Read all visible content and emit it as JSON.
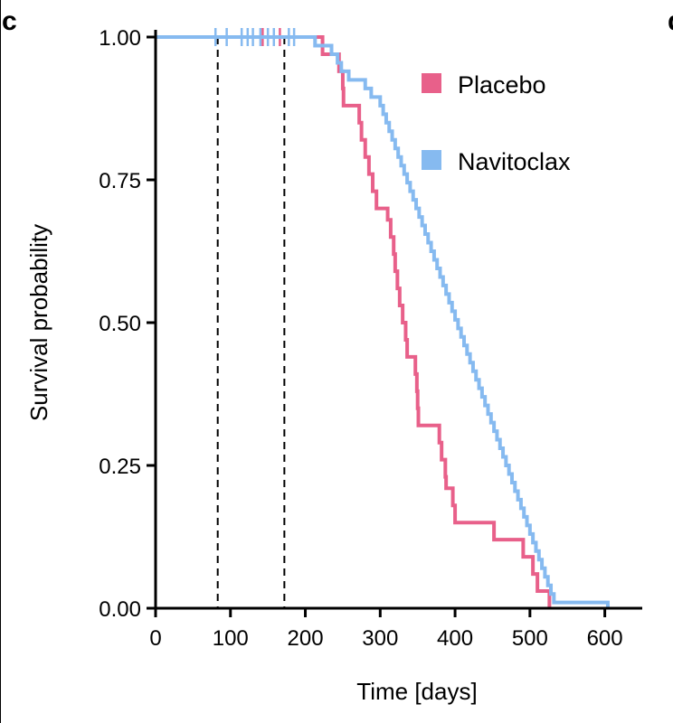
{
  "panel_letters": {
    "left": "c",
    "right": "d"
  },
  "chart_data": {
    "type": "line",
    "subtype": "kaplan-meier step",
    "xlabel": "Time [days]",
    "ylabel": "Survival probability",
    "xlim": [
      0,
      650
    ],
    "ylim": [
      0,
      1
    ],
    "x_ticks": [
      0,
      100,
      200,
      300,
      400,
      500,
      600
    ],
    "y_ticks": [
      0.0,
      0.25,
      0.5,
      0.75,
      1.0
    ],
    "y_tick_labels": [
      "0.00",
      "0.25",
      "0.50",
      "0.75",
      "1.00"
    ],
    "reference_lines": {
      "x": [
        83,
        172
      ],
      "style": "dashed"
    },
    "legend": {
      "placement": "top-right"
    },
    "series": [
      {
        "name": "Placebo",
        "color": "#E8608A",
        "steps": [
          [
            0,
            1.0
          ],
          [
            223,
            0.97
          ],
          [
            226,
            0.97
          ],
          [
            226,
            0.97
          ],
          [
            225,
            0.97
          ],
          [
            226,
            0.97
          ],
          [
            227,
            0.97
          ],
          [
            225,
            0.97
          ],
          [
            215,
            0.97
          ],
          [
            226,
            0.97
          ],
          [
            226,
            0.97
          ],
          [
            226,
            0.97
          ],
          [
            226,
            0.97
          ],
          [
            226,
            0.97
          ],
          [
            226,
            0.97
          ],
          [
            226,
            0.97
          ],
          [
            226,
            0.97
          ],
          [
            226,
            0.97
          ],
          [
            226,
            0.97
          ],
          [
            226,
            0.97
          ],
          [
            226,
            0.97
          ],
          [
            226,
            0.97
          ],
          [
            226,
            0.97
          ],
          [
            226,
            0.97
          ],
          [
            226,
            0.97
          ],
          [
            226,
            0.97
          ],
          [
            226,
            0.97
          ],
          [
            226,
            0.97
          ]
        ],
        "step_points": [
          [
            0,
            1.0
          ],
          [
            223,
            0.97
          ],
          [
            227,
            0.97
          ],
          [
            235,
            0.97
          ],
          [
            245,
            0.94
          ],
          [
            250,
            0.91
          ],
          [
            251,
            0.88
          ],
          [
            272,
            0.85
          ],
          [
            275,
            0.82
          ],
          [
            280,
            0.79
          ],
          [
            285,
            0.76
          ],
          [
            290,
            0.73
          ],
          [
            295,
            0.7
          ],
          [
            310,
            0.68
          ],
          [
            314,
            0.65
          ],
          [
            318,
            0.62
          ],
          [
            320,
            0.59
          ],
          [
            323,
            0.56
          ],
          [
            326,
            0.53
          ],
          [
            330,
            0.5
          ],
          [
            334,
            0.47
          ],
          [
            336,
            0.44
          ],
          [
            347,
            0.41
          ],
          [
            349,
            0.38
          ],
          [
            350,
            0.35
          ],
          [
            351,
            0.32
          ],
          [
            379,
            0.29
          ],
          [
            382,
            0.26
          ],
          [
            387,
            0.23
          ],
          [
            388,
            0.21
          ],
          [
            397,
            0.18
          ],
          [
            400,
            0.15
          ],
          [
            452,
            0.12
          ],
          [
            463,
            0.12
          ],
          [
            491,
            0.09
          ],
          [
            504,
            0.06
          ],
          [
            510,
            0.03
          ],
          [
            526,
            0.0
          ]
        ],
        "censor_marks": [
          143,
          166
        ]
      },
      {
        "name": "Navitoclax",
        "color": "#86BAF0",
        "step_points": [
          [
            0,
            1.0
          ],
          [
            213,
            0.985
          ],
          [
            235,
            0.97
          ],
          [
            240,
            0.97
          ],
          [
            243,
            0.955
          ],
          [
            248,
            0.94
          ],
          [
            258,
            0.925
          ],
          [
            280,
            0.91
          ],
          [
            288,
            0.895
          ],
          [
            300,
            0.88
          ],
          [
            304,
            0.865
          ],
          [
            308,
            0.85
          ],
          [
            312,
            0.835
          ],
          [
            316,
            0.82
          ],
          [
            320,
            0.805
          ],
          [
            324,
            0.79
          ],
          [
            328,
            0.775
          ],
          [
            332,
            0.76
          ],
          [
            336,
            0.745
          ],
          [
            340,
            0.73
          ],
          [
            344,
            0.715
          ],
          [
            348,
            0.7
          ],
          [
            352,
            0.685
          ],
          [
            356,
            0.67
          ],
          [
            360,
            0.655
          ],
          [
            364,
            0.64
          ],
          [
            368,
            0.625
          ],
          [
            372,
            0.61
          ],
          [
            376,
            0.595
          ],
          [
            380,
            0.58
          ],
          [
            384,
            0.565
          ],
          [
            388,
            0.55
          ],
          [
            392,
            0.535
          ],
          [
            396,
            0.52
          ],
          [
            400,
            0.505
          ],
          [
            404,
            0.49
          ],
          [
            408,
            0.475
          ],
          [
            412,
            0.46
          ],
          [
            416,
            0.445
          ],
          [
            420,
            0.43
          ],
          [
            424,
            0.415
          ],
          [
            428,
            0.4
          ],
          [
            432,
            0.385
          ],
          [
            436,
            0.37
          ],
          [
            440,
            0.355
          ],
          [
            444,
            0.34
          ],
          [
            448,
            0.325
          ],
          [
            452,
            0.31
          ],
          [
            456,
            0.295
          ],
          [
            460,
            0.28
          ],
          [
            464,
            0.265
          ],
          [
            468,
            0.25
          ],
          [
            472,
            0.235
          ],
          [
            476,
            0.22
          ],
          [
            480,
            0.205
          ],
          [
            484,
            0.19
          ],
          [
            488,
            0.175
          ],
          [
            492,
            0.16
          ],
          [
            496,
            0.145
          ],
          [
            500,
            0.13
          ],
          [
            504,
            0.115
          ],
          [
            508,
            0.1
          ],
          [
            512,
            0.085
          ],
          [
            516,
            0.07
          ],
          [
            520,
            0.055
          ],
          [
            524,
            0.04
          ],
          [
            528,
            0.025
          ],
          [
            532,
            0.01
          ],
          [
            604,
            0.0
          ]
        ],
        "censor_marks": [
          80,
          95,
          115,
          123,
          130,
          140,
          150,
          158,
          178,
          185
        ]
      }
    ]
  }
}
